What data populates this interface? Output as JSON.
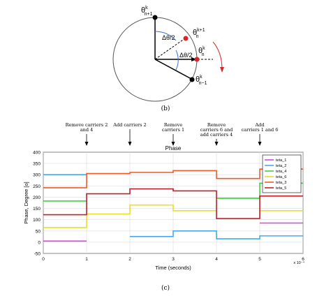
{
  "diagram": {
    "caption": "(b)",
    "labels": {
      "theta_top": {
        "base": "θ",
        "sup": "k",
        "sub": "n+1"
      },
      "theta_mid_top": {
        "base": "θ",
        "sup": "k+1",
        "sub": "n"
      },
      "theta_mid": {
        "base": "θ",
        "sup": "k",
        "sub": "n"
      },
      "theta_bottom": {
        "base": "θ",
        "sup": "k",
        "sub": "n−1"
      },
      "delta_upper": "Δθ/2",
      "delta_lower": "Δθ/2"
    }
  },
  "annotations": [
    {
      "text": [
        "Remove carriers 2",
        "and 4"
      ],
      "t": 1
    },
    {
      "text": [
        "Add carriers 2"
      ],
      "t": 2
    },
    {
      "text": [
        "Remove",
        "carriers 1"
      ],
      "t": 3
    },
    {
      "text": [
        "Remove",
        "carriers 6 and",
        "add carriers 4"
      ],
      "t": 4
    },
    {
      "text": [
        "Add",
        "carriers 1 and 6"
      ],
      "t": 5
    }
  ],
  "caption_c": "(c)",
  "chart_data": {
    "type": "line",
    "title": "Phase",
    "xlabel": "Time (seconds)",
    "ylabel": "Phase, Degree [o]",
    "x_exponent": "x 10⁻⁴",
    "xlim": [
      0,
      6
    ],
    "ylim": [
      -50,
      400
    ],
    "xticks": [
      "0",
      "1",
      "2",
      "3",
      "4",
      "5",
      "6"
    ],
    "yticks": [
      "-50",
      "0",
      "50",
      "100",
      "150",
      "200",
      "250",
      "300",
      "350",
      "400"
    ],
    "grid": true,
    "legend_position": "top-right",
    "series": [
      {
        "name": "teta_1",
        "color": "#e040e0",
        "segments": [
          [
            0,
            1,
            5
          ],
          [
            3,
            5,
            null
          ],
          [
            5,
            6,
            85
          ]
        ]
      },
      {
        "name": "teta_2",
        "color": "#4aa8e8",
        "segments": [
          [
            0,
            1,
            300
          ],
          [
            1,
            2,
            null
          ],
          [
            2,
            3,
            25
          ],
          [
            3,
            4,
            50
          ],
          [
            4,
            5,
            15
          ],
          [
            5,
            6,
            28
          ]
        ]
      },
      {
        "name": "teta_4",
        "color": "#40d040",
        "segments": [
          [
            0,
            1,
            183
          ],
          [
            1,
            4,
            null
          ],
          [
            4,
            5,
            195
          ],
          [
            5,
            6,
            262
          ]
        ]
      },
      {
        "name": "teta_6",
        "color": "#e8e020",
        "segments": [
          [
            0,
            1,
            65
          ],
          [
            1,
            2,
            125
          ],
          [
            2,
            3,
            165
          ],
          [
            3,
            4,
            140
          ],
          [
            4,
            5,
            null
          ],
          [
            5,
            6,
            140
          ]
        ]
      },
      {
        "name": "teta_3",
        "color": "#f05a28",
        "segments": [
          [
            0,
            1,
            242
          ],
          [
            1,
            2,
            305
          ],
          [
            2,
            3,
            310
          ],
          [
            3,
            4,
            318
          ],
          [
            4,
            5,
            283
          ],
          [
            5,
            6,
            325
          ]
        ]
      },
      {
        "name": "teta_5",
        "color": "#c0202a",
        "segments": [
          [
            0,
            1,
            122
          ],
          [
            1,
            2,
            215
          ],
          [
            2,
            3,
            237
          ],
          [
            3,
            4,
            228
          ],
          [
            4,
            5,
            105
          ],
          [
            5,
            6,
            205
          ]
        ]
      }
    ]
  }
}
